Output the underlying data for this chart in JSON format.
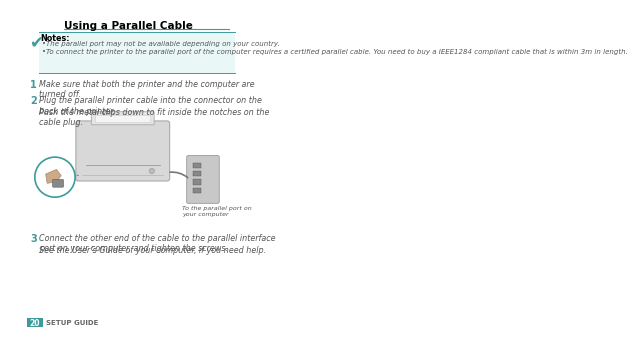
{
  "title": "Using a Parallel Cable",
  "notes_header": "Notes:",
  "note1": "The parallel port may not be available depending on your country.",
  "note2": "To connect the printer to the parallel port of the computer requires a certified parallel cable. You need to buy a IEEE1284 compliant cable that is within 3m in length.",
  "step1_num": "1",
  "step1_text": "Make sure that both the printer and the computer are\nturned off.",
  "step2_num": "2",
  "step2_text": "Plug the parallel printer cable into the connector on the\nback of the printer.",
  "step2_sub": "Push the metal clips down to fit inside the notches on the\ncable plug.",
  "step3_num": "3",
  "step3_text": "Connect the other end of the cable to the parallel interface\nport on your computer, and tighten the screws.",
  "step3_sub": "See the User’s Guide of your computer, if you need help.",
  "caption": "To the parallel port on\nyour computer",
  "page_num": "20",
  "page_label": "SETUP GUIDE",
  "bg_color": "#ffffff",
  "teal_color": "#3d9b9b",
  "page_num_bg": "#3d9b9b",
  "page_num_fg": "#ffffff",
  "body_text_color": "#555555",
  "title_color": "#000000"
}
